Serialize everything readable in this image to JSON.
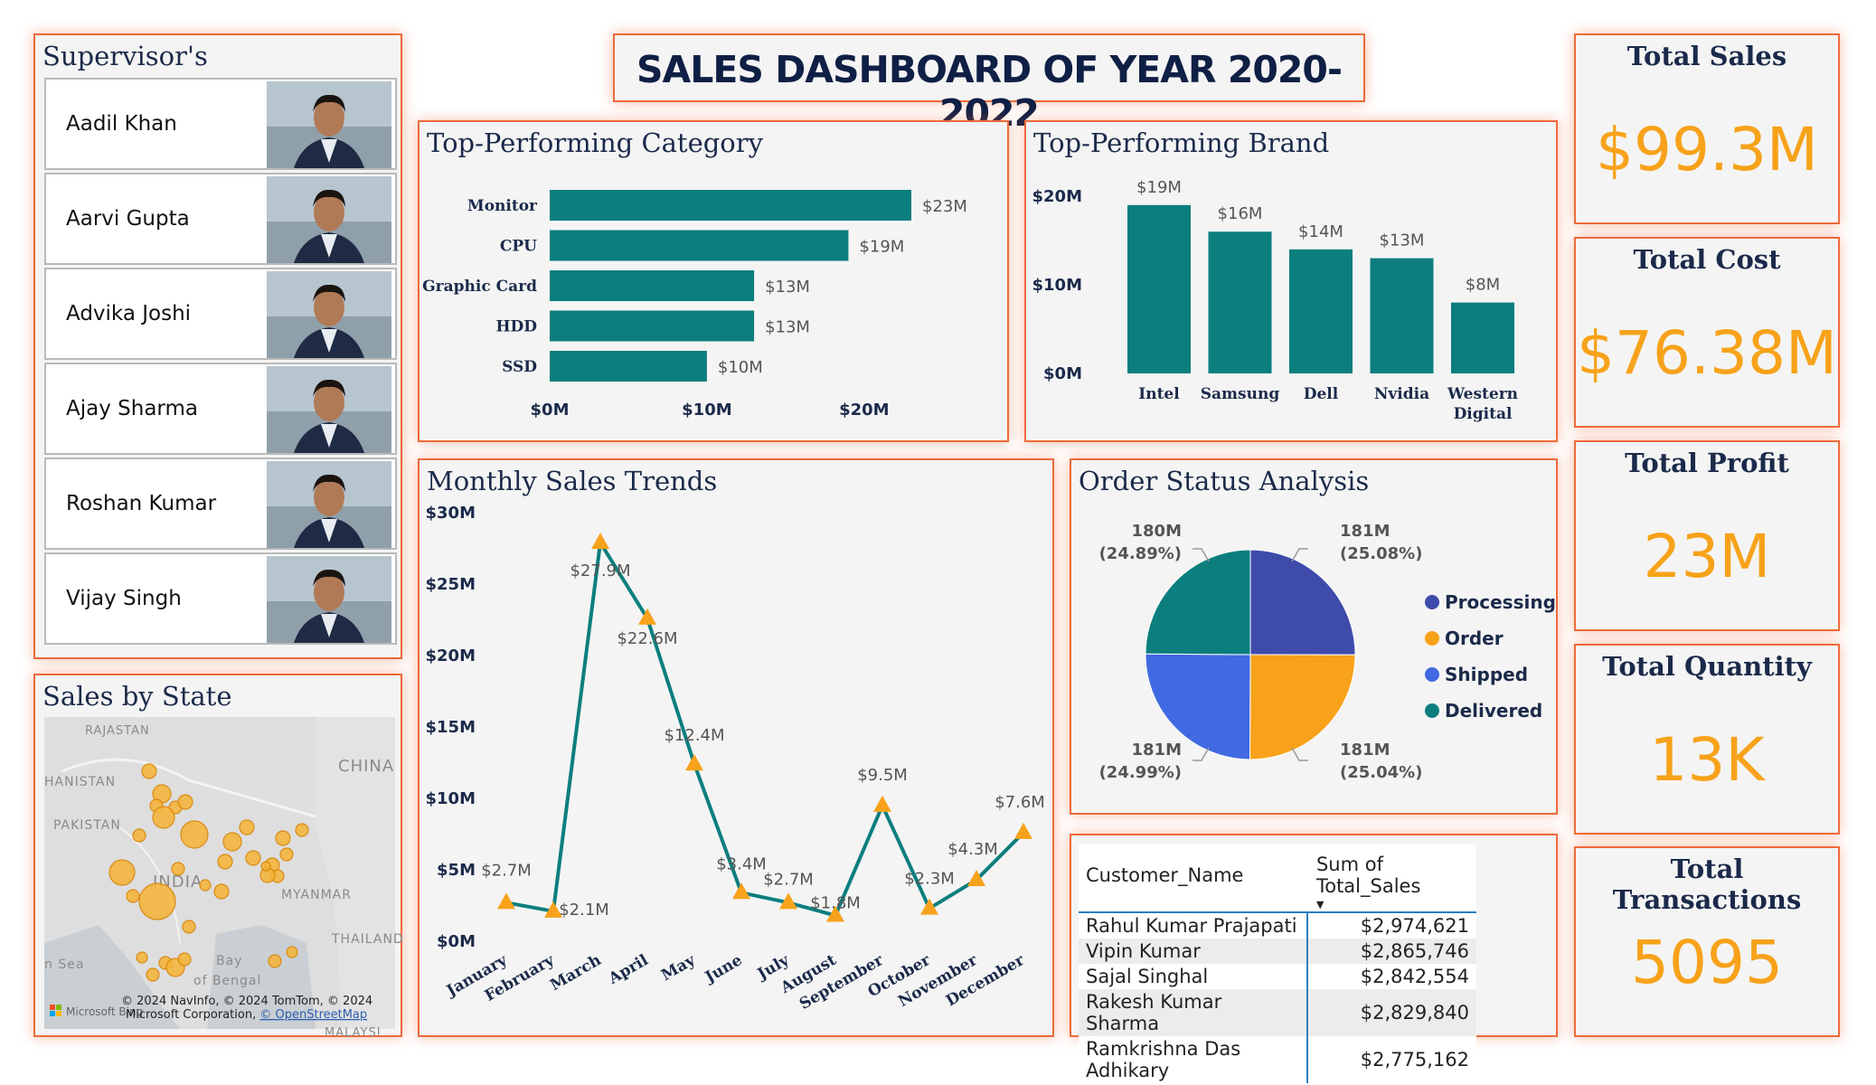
{
  "dashboard_title": "SALES DASHBOARD OF YEAR 2020-2022",
  "supervisors": {
    "title": "Supervisor's",
    "items": [
      {
        "name": "Aadil Khan"
      },
      {
        "name": "Aarvi Gupta"
      },
      {
        "name": "Advika Joshi"
      },
      {
        "name": "Ajay Sharma"
      },
      {
        "name": "Roshan Kumar"
      },
      {
        "name": "Vijay Singh"
      }
    ]
  },
  "map": {
    "title": "Sales by State",
    "labels": [
      "RAJASTAN",
      "HANISTAN",
      "PAKISTAN",
      "CHINA",
      "INDIA",
      "MYANMAR",
      "THAILAND",
      "Bay",
      "of Bengal",
      "n Sea",
      "MALAYSI"
    ],
    "attribution_line1": "© 2024 NavInfo, © 2024 TomTom, © 2024",
    "attribution_line2": "Microsoft Corporation, ",
    "attribution_link": "© OpenStreetMap",
    "brand": "Microsoft Bing"
  },
  "kpis": [
    {
      "title": "Total Sales",
      "value": "$99.3M"
    },
    {
      "title": "Total Cost",
      "value": "$76.38M"
    },
    {
      "title": "Total Profit",
      "value": "23M"
    },
    {
      "title": "Total Quantity",
      "value": "13K"
    },
    {
      "title": "Total Transactions",
      "value": "5095"
    }
  ],
  "colors": {
    "teal": "#0c7e7e",
    "accent_orange": "#f7a21a",
    "panel_border": "#ee6a3a",
    "processing": "#3f4bab",
    "order": "#f7a21a",
    "shipped": "#4169e1",
    "delivered": "#0c7e7e"
  },
  "chart_data": [
    {
      "type": "bar",
      "orientation": "horizontal",
      "title": "Top-Performing Category",
      "categories": [
        "Monitor",
        "CPU",
        "Graphic Card",
        "HDD",
        "SSD"
      ],
      "values": [
        23,
        19,
        13,
        13,
        10
      ],
      "data_labels": [
        "$23M",
        "$19M",
        "$13M",
        "$13M",
        "$10M"
      ],
      "x_ticks": [
        "$0M",
        "$10M",
        "$20M"
      ],
      "xlim": [
        0,
        25
      ],
      "unit": "$M"
    },
    {
      "type": "bar",
      "orientation": "vertical",
      "title": "Top-Performing Brand",
      "categories": [
        "Intel",
        "Samsung",
        "Dell",
        "Nvidia",
        "Western Digital"
      ],
      "values": [
        19,
        16,
        14,
        13,
        8
      ],
      "data_labels": [
        "$19M",
        "$16M",
        "$14M",
        "$13M",
        "$8M"
      ],
      "y_ticks": [
        "$0M",
        "$10M",
        "$20M"
      ],
      "ylim": [
        0,
        20
      ],
      "unit": "$M"
    },
    {
      "type": "line",
      "title": "Monthly Sales Trends",
      "categories": [
        "January",
        "February",
        "March",
        "April",
        "May",
        "June",
        "July",
        "August",
        "September",
        "October",
        "November",
        "December"
      ],
      "values": [
        2.7,
        2.1,
        27.9,
        22.6,
        12.4,
        3.4,
        2.7,
        1.8,
        9.5,
        2.3,
        4.3,
        7.6
      ],
      "data_labels": [
        "$2.7M",
        "$2.1M",
        "$27.9M",
        "$22.6M",
        "$12.4M",
        "$3.4M",
        "$2.7M",
        "$1.8M",
        "$9.5M",
        "$2.3M",
        "$4.3M",
        "$7.6M"
      ],
      "y_ticks": [
        "$0M",
        "$5M",
        "$10M",
        "$15M",
        "$20M",
        "$25M",
        "$30M"
      ],
      "ylim": [
        0,
        30
      ],
      "unit": "$M"
    },
    {
      "type": "pie",
      "title": "Order Status Analysis",
      "slices": [
        {
          "name": "Processing",
          "value": 181,
          "label": "181M",
          "pct": "(25.08%)"
        },
        {
          "name": "Order",
          "value": 181,
          "label": "181M",
          "pct": "(25.04%)"
        },
        {
          "name": "Shipped",
          "value": 181,
          "label": "181M",
          "pct": "(24.99%)"
        },
        {
          "name": "Delivered",
          "value": 180,
          "label": "180M",
          "pct": "(24.89%)"
        }
      ],
      "legend_position": "right"
    },
    {
      "type": "table",
      "columns": [
        "Customer_Name",
        "Sum of Total_Sales"
      ],
      "rows": [
        [
          "Rahul Kumar Prajapati",
          "$2,974,621"
        ],
        [
          "Vipin Kumar",
          "$2,865,746"
        ],
        [
          "Sajal Singhal",
          "$2,842,554"
        ],
        [
          "Rakesh Kumar Sharma",
          "$2,829,840"
        ],
        [
          "Ramkrishna Das Adhikary",
          "$2,775,162"
        ]
      ]
    }
  ]
}
